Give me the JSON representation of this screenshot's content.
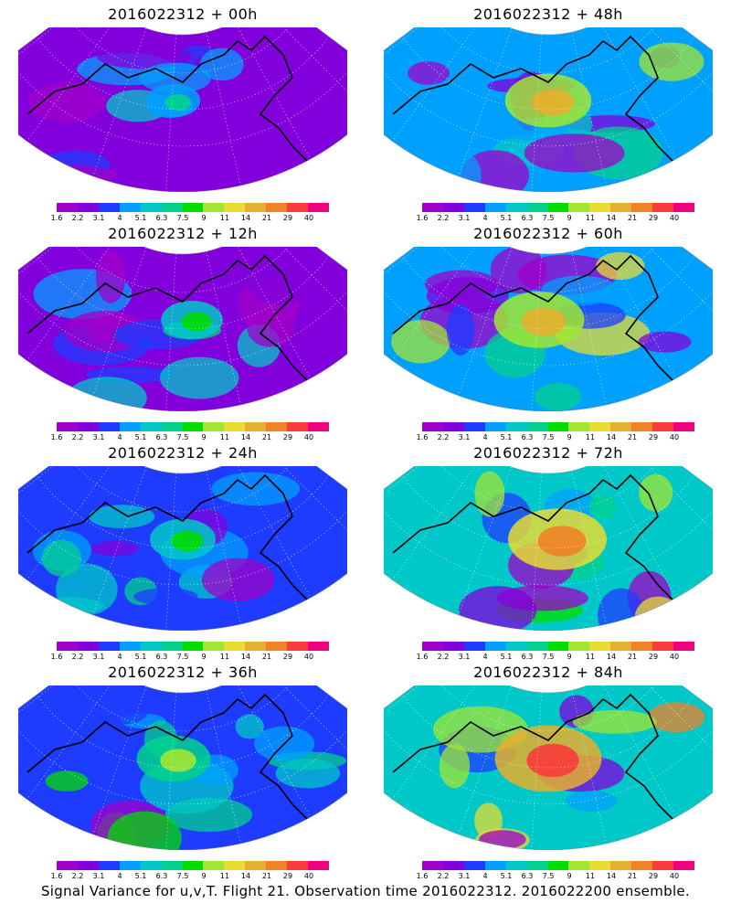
{
  "panels": [
    {
      "title": "2016022312 + 00h",
      "intensity": 0.15
    },
    {
      "title": "2016022312 + 48h",
      "intensity": 0.55
    },
    {
      "title": "2016022312 + 12h",
      "intensity": 0.25
    },
    {
      "title": "2016022312 + 60h",
      "intensity": 0.6
    },
    {
      "title": "2016022312 + 24h",
      "intensity": 0.3
    },
    {
      "title": "2016022312 + 72h",
      "intensity": 0.7
    },
    {
      "title": "2016022312 + 36h",
      "intensity": 0.4
    },
    {
      "title": "2016022312 + 84h",
      "intensity": 0.8
    }
  ],
  "colorbar": {
    "levels": [
      "1.6",
      "2.2",
      "3.1",
      "4",
      "5.1",
      "6.3",
      "7.5",
      "9",
      "11",
      "14",
      "21",
      "29",
      "40"
    ],
    "colors": [
      "#a000c8",
      "#8200dc",
      "#1e3cff",
      "#00a0ff",
      "#00c8c8",
      "#00d28c",
      "#00dc00",
      "#a0e632",
      "#e6dc32",
      "#e6af2d",
      "#f08228",
      "#fa3c3c",
      "#f00082"
    ]
  },
  "caption": "Signal Variance for u,v,T. Flight 21. Observation time 2016022312. 2016022200 ensemble."
}
